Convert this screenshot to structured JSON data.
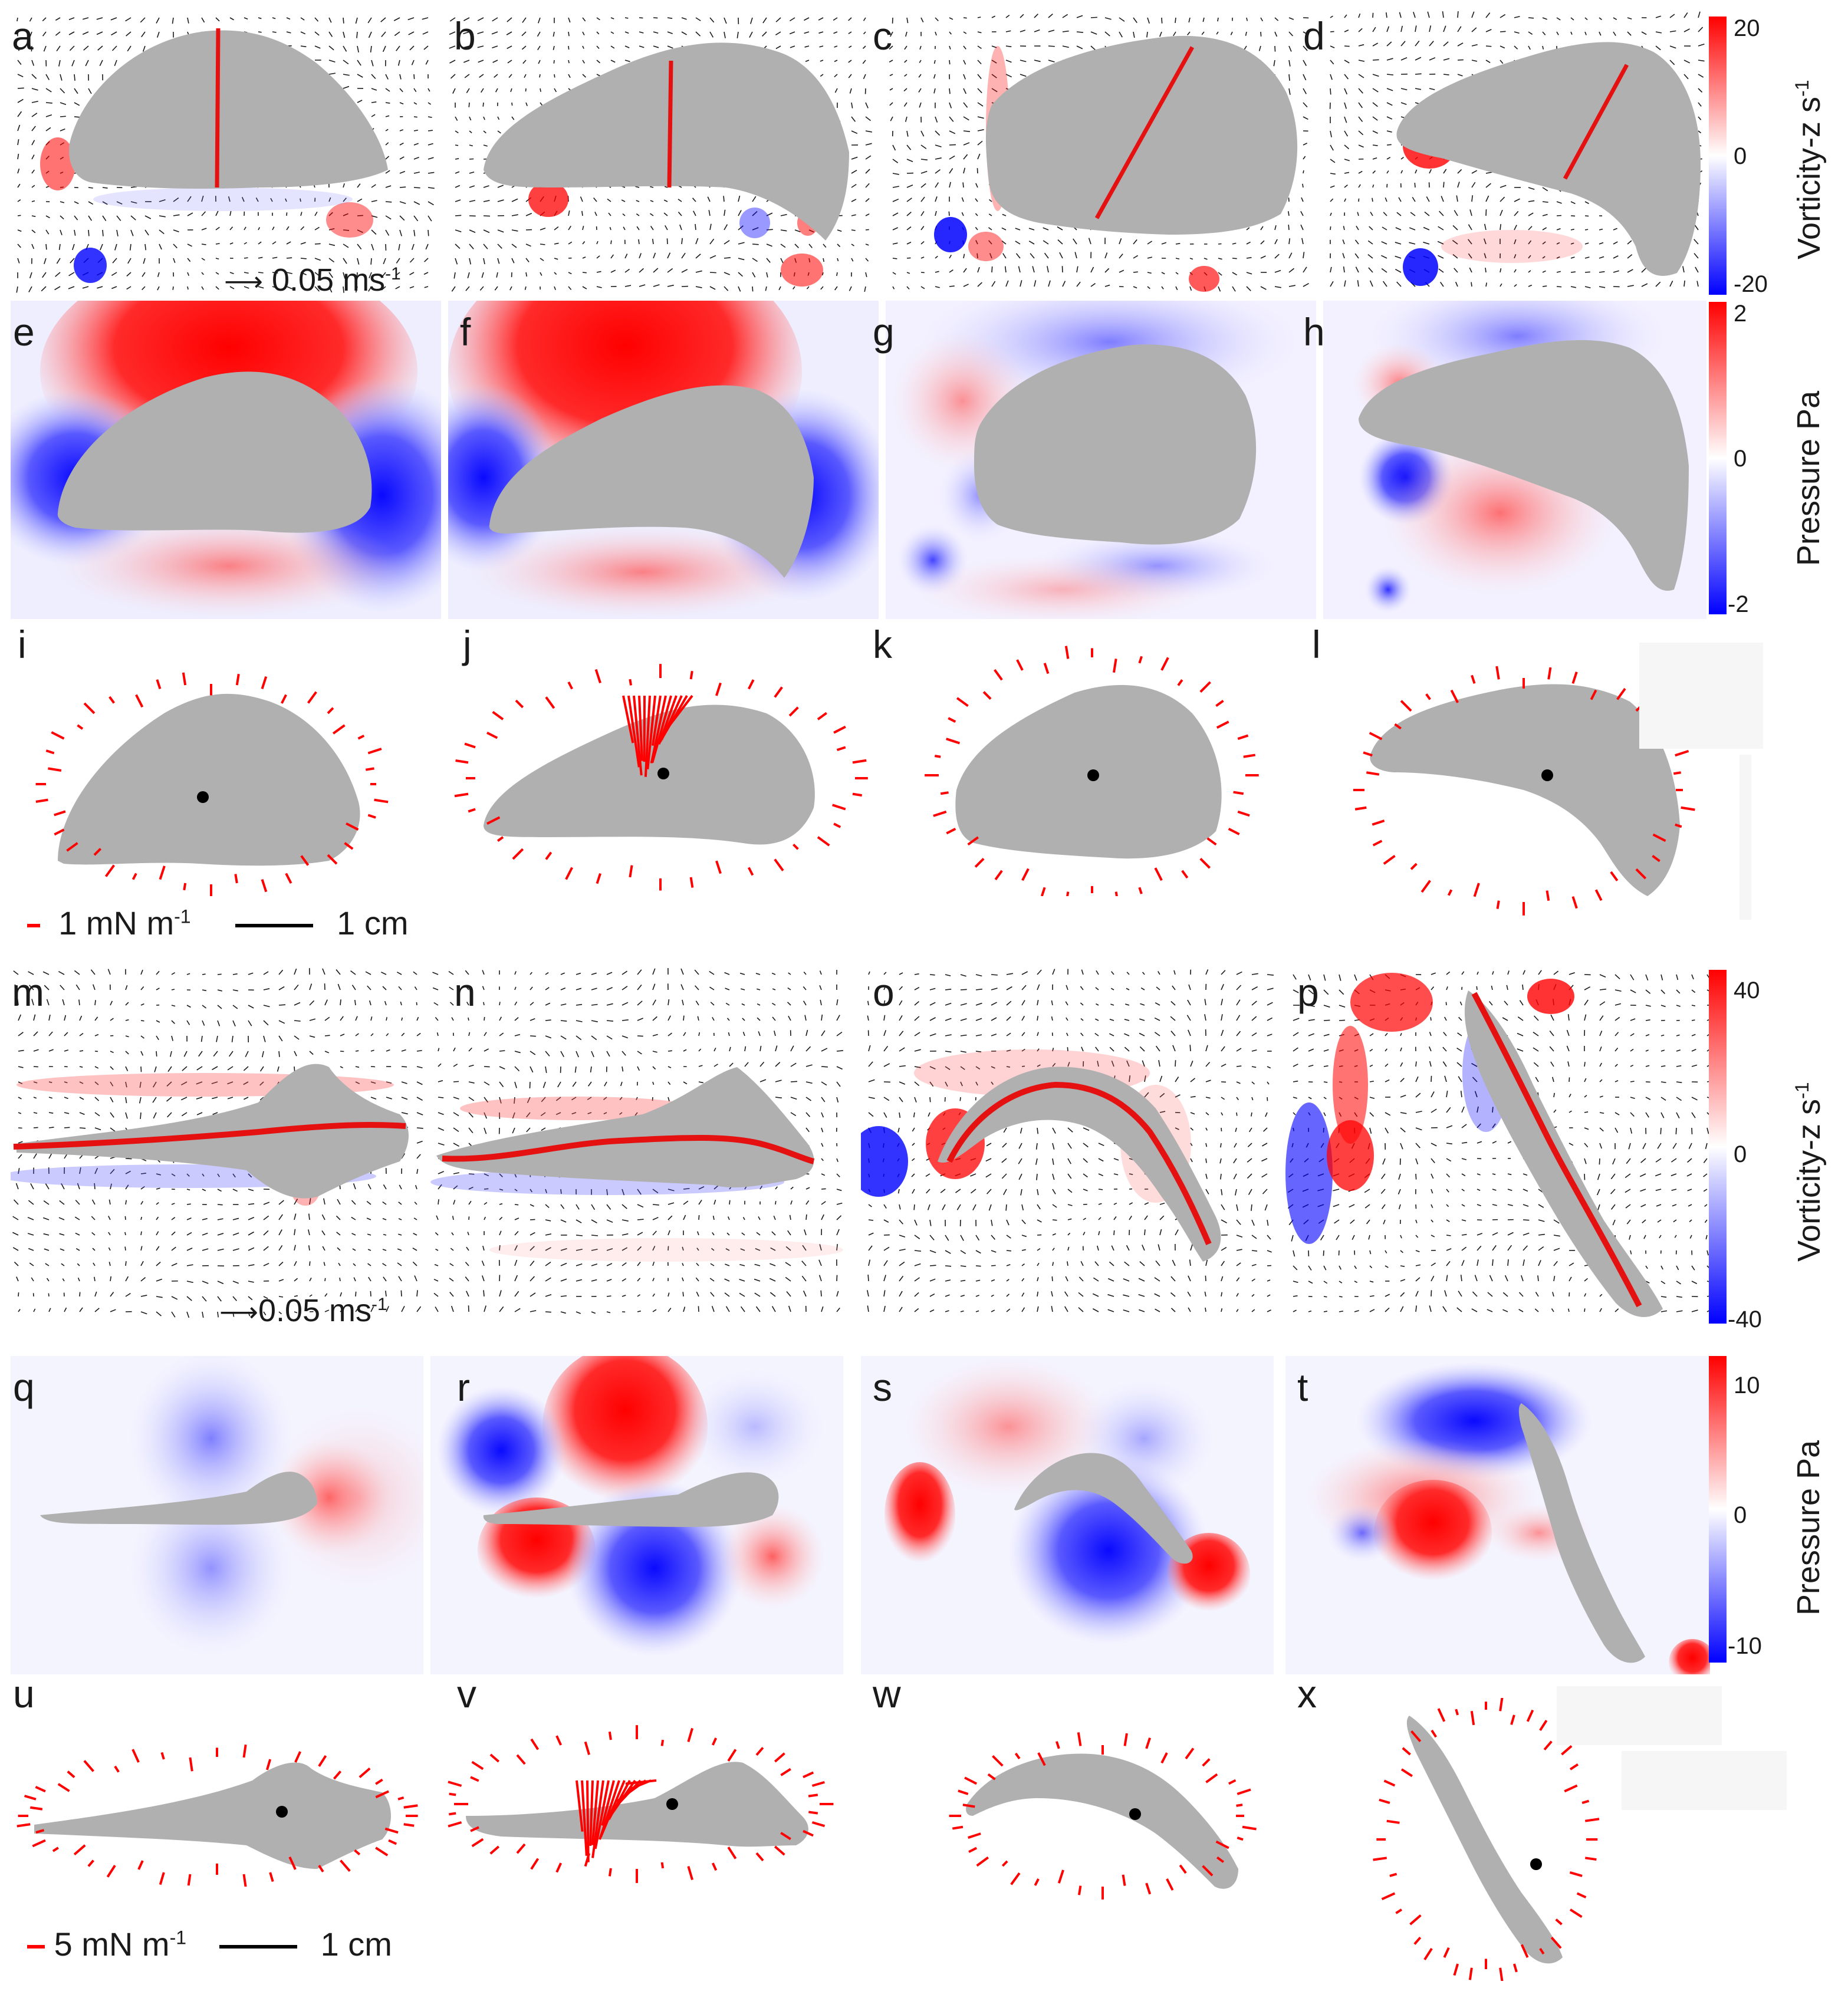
{
  "panel_labels": [
    "a",
    "b",
    "c",
    "d",
    "e",
    "f",
    "g",
    "h",
    "i",
    "j",
    "k",
    "l",
    "m",
    "n",
    "o",
    "p",
    "q",
    "r",
    "s",
    "t",
    "u",
    "v",
    "w",
    "x"
  ],
  "top_colorbars": {
    "vorticity": {
      "title": "Vorticity-z s",
      "sup": "-1",
      "ticks": [
        "20",
        "0",
        "-20"
      ]
    },
    "pressure": {
      "title": "Pressure Pa",
      "ticks": [
        "2",
        "0",
        "-2"
      ]
    }
  },
  "bottom_colorbars": {
    "vorticity": {
      "title": "Vorticity-z s",
      "sup": "-1",
      "ticks": [
        "40",
        "0",
        "-40"
      ]
    },
    "pressure": {
      "title": "Pressure Pa",
      "ticks": [
        "10",
        "0",
        "-10"
      ]
    }
  },
  "scales": {
    "velocity_top": {
      "text": "0.05 ms",
      "sup": "-1"
    },
    "velocity_bottom": {
      "text": "0.05 ms",
      "sup": "-1"
    },
    "force_top": {
      "text": "1 mN m",
      "sup": "-1",
      "length": "1 cm"
    },
    "force_bottom": {
      "text": "5 mN m",
      "sup": "-1",
      "length": "1 cm"
    }
  },
  "colors": {
    "positive": "#ff0000",
    "negative": "#0000ff",
    "body": "#b0b0b0",
    "vector": "#1a1a1a",
    "force": "#ff0000"
  }
}
